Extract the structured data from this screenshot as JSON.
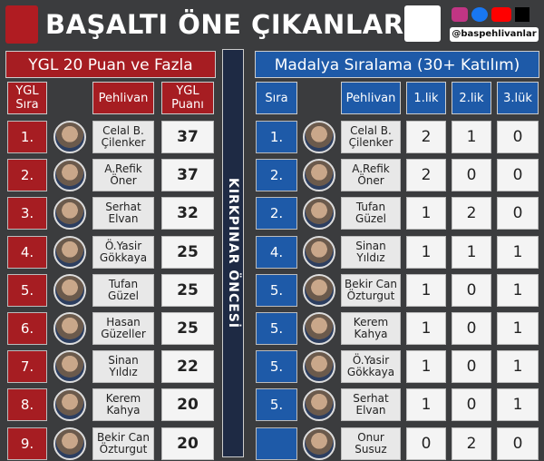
{
  "header": {
    "title": "BAŞALTI ÖNE ÇIKANLAR",
    "handle": "@baspehlivanlar"
  },
  "divider_label": "KIRKPINAR ÖNCESİ",
  "left_table": {
    "title": "YGL 20 Puan ve Fazla",
    "headers": [
      "YGL Sıra",
      "Pehlivan",
      "YGL Puanı"
    ],
    "rows": [
      [
        "1.",
        [
          "Celal B.",
          "Çilenker"
        ],
        "37"
      ],
      [
        "2.",
        [
          "A.Refik",
          "Öner"
        ],
        "37"
      ],
      [
        "3.",
        [
          "Serhat",
          "Elvan"
        ],
        "32"
      ],
      [
        "4.",
        [
          "Ö.Yasir",
          "Gökkaya"
        ],
        "25"
      ],
      [
        "5.",
        [
          "Tufan",
          "Güzel"
        ],
        "25"
      ],
      [
        "6.",
        [
          "Hasan",
          "Güzeller"
        ],
        "25"
      ],
      [
        "7.",
        [
          "Sinan",
          "Yıldız"
        ],
        "22"
      ],
      [
        "8.",
        [
          "Kerem",
          "Kahya"
        ],
        "20"
      ],
      [
        "9.",
        [
          "Bekir Can",
          "Özturgut"
        ],
        "20"
      ]
    ]
  },
  "right_table": {
    "title": "Madalya Sıralama (30+ Katılım)",
    "headers": [
      "Sıra",
      "Pehlivan",
      "1.lik",
      "2.lik",
      "3.lük"
    ],
    "rows": [
      [
        "1.",
        [
          "Celal B.",
          "Çilenker"
        ],
        "2",
        "1",
        "0"
      ],
      [
        "2.",
        [
          "A.Refik",
          "Öner"
        ],
        "2",
        "0",
        "0"
      ],
      [
        "2.",
        [
          "Tufan",
          "Güzel"
        ],
        "1",
        "2",
        "0"
      ],
      [
        "4.",
        [
          "Sinan",
          "Yıldız"
        ],
        "1",
        "1",
        "1"
      ],
      [
        "5.",
        [
          "Bekir Can",
          "Özturgut"
        ],
        "1",
        "0",
        "1"
      ],
      [
        "5.",
        [
          "Kerem",
          "Kahya"
        ],
        "1",
        "0",
        "1"
      ],
      [
        "5.",
        [
          "Ö.Yasir",
          "Gökkaya"
        ],
        "1",
        "0",
        "1"
      ],
      [
        "5.",
        [
          "Serhat",
          "Elvan"
        ],
        "1",
        "0",
        "1"
      ],
      [
        null,
        [
          "Onur",
          "Susuz"
        ],
        "0",
        "2",
        "0"
      ]
    ]
  }
}
